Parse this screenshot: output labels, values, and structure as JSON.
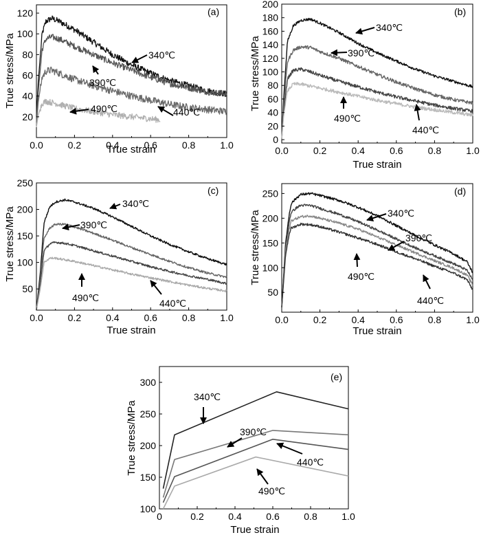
{
  "chart_data": [
    {
      "type": "line",
      "panel": "(a)",
      "xlabel": "True strain",
      "ylabel": "True stress/MPa",
      "xlim": [
        0,
        1.0
      ],
      "ylim": [
        0,
        128
      ],
      "xticks": [
        "0.0",
        "0.2",
        "0.4",
        "0.6",
        "0.8",
        "1.0"
      ],
      "yticks": [
        "20",
        "40",
        "60",
        "80",
        "100",
        "120"
      ],
      "series": [
        {
          "name": "340℃",
          "color": "#111111",
          "noise": 3.0,
          "x": [
            0,
            0.01,
            0.03,
            0.05,
            0.08,
            0.12,
            0.2,
            0.3,
            0.4,
            0.5,
            0.6,
            0.7,
            0.8,
            0.9,
            1.0
          ],
          "y": [
            20,
            55,
            100,
            112,
            115,
            112,
            104,
            92,
            80,
            70,
            62,
            55,
            50,
            45,
            42
          ]
        },
        {
          "name": "390℃",
          "color": "#555555",
          "noise": 3.0,
          "x": [
            0,
            0.01,
            0.03,
            0.05,
            0.08,
            0.12,
            0.2,
            0.3,
            0.4,
            0.5,
            0.6,
            0.7,
            0.8,
            0.9,
            1.0
          ],
          "y": [
            15,
            45,
            85,
            95,
            97,
            95,
            88,
            80,
            72,
            65,
            58,
            52,
            48,
            44,
            42
          ]
        },
        {
          "name": "440℃",
          "color": "#6a6a6a",
          "noise": 3.5,
          "x": [
            0,
            0.01,
            0.03,
            0.05,
            0.08,
            0.12,
            0.2,
            0.3,
            0.4,
            0.5,
            0.6,
            0.7,
            0.8,
            0.9,
            1.0
          ],
          "y": [
            12,
            35,
            58,
            64,
            65,
            62,
            56,
            50,
            45,
            40,
            36,
            32,
            29,
            27,
            25
          ]
        },
        {
          "name": "490℃",
          "color": "#b0b0b0",
          "noise": 3.0,
          "x": [
            0,
            0.01,
            0.03,
            0.05,
            0.1,
            0.2,
            0.3,
            0.4,
            0.5,
            0.6,
            0.65
          ],
          "y": [
            10,
            22,
            33,
            35,
            33,
            28,
            25,
            22,
            20,
            18,
            17
          ]
        }
      ],
      "annotations": [
        "340℃",
        "390℃",
        "440℃",
        "490℃"
      ]
    },
    {
      "type": "line",
      "panel": "(b)",
      "xlabel": "True strain",
      "ylabel": "True stress/MPa",
      "xlim": [
        0,
        1.0
      ],
      "ylim": [
        -5,
        200
      ],
      "xticks": [
        "0.0",
        "0.2",
        "0.4",
        "0.6",
        "0.8",
        "1.0"
      ],
      "yticks": [
        "0",
        "20",
        "40",
        "60",
        "80",
        "100",
        "120",
        "140",
        "160",
        "180",
        "200"
      ],
      "series": [
        {
          "name": "340℃",
          "color": "#111111",
          "noise": 2.0,
          "x": [
            0,
            0.01,
            0.03,
            0.06,
            0.1,
            0.15,
            0.2,
            0.3,
            0.4,
            0.5,
            0.6,
            0.7,
            0.8,
            0.9,
            1.0
          ],
          "y": [
            0,
            60,
            145,
            168,
            176,
            178,
            172,
            158,
            142,
            128,
            116,
            104,
            94,
            86,
            78
          ]
        },
        {
          "name": "390℃",
          "color": "#666666",
          "noise": 2.5,
          "x": [
            0,
            0.01,
            0.03,
            0.06,
            0.1,
            0.15,
            0.2,
            0.3,
            0.4,
            0.5,
            0.6,
            0.7,
            0.8,
            0.9,
            1.0
          ],
          "y": [
            0,
            50,
            115,
            132,
            137,
            136,
            130,
            120,
            108,
            96,
            85,
            75,
            66,
            59,
            54
          ]
        },
        {
          "name": "440℃",
          "color": "#444444",
          "noise": 2.5,
          "x": [
            0,
            0.01,
            0.03,
            0.06,
            0.1,
            0.15,
            0.2,
            0.3,
            0.4,
            0.5,
            0.6,
            0.7,
            0.8,
            0.9,
            1.0
          ],
          "y": [
            0,
            40,
            90,
            102,
            104,
            100,
            95,
            86,
            78,
            70,
            63,
            57,
            51,
            46,
            42
          ]
        },
        {
          "name": "490℃",
          "color": "#bbbbbb",
          "noise": 2.5,
          "x": [
            0,
            0.01,
            0.03,
            0.06,
            0.1,
            0.2,
            0.3,
            0.4,
            0.5,
            0.6,
            0.7,
            0.8,
            0.9,
            1.0
          ],
          "y": [
            0,
            35,
            72,
            82,
            82,
            76,
            70,
            64,
            58,
            53,
            48,
            44,
            40,
            36
          ]
        }
      ],
      "annotations": [
        "340℃",
        "390℃",
        "440℃",
        "490℃"
      ]
    },
    {
      "type": "line",
      "panel": "(c)",
      "xlabel": "True strain",
      "ylabel": "True stress/MPa",
      "xlim": [
        0,
        1.0
      ],
      "ylim": [
        10,
        250
      ],
      "xticks": [
        "0.0",
        "0.2",
        "0.4",
        "0.6",
        "0.8",
        "1.0"
      ],
      "yticks": [
        "50",
        "100",
        "150",
        "200",
        "250"
      ],
      "series": [
        {
          "name": "340℃",
          "color": "#111111",
          "noise": 2.0,
          "x": [
            0,
            0.02,
            0.04,
            0.07,
            0.1,
            0.15,
            0.2,
            0.3,
            0.4,
            0.5,
            0.6,
            0.7,
            0.8,
            0.9,
            1.0
          ],
          "y": [
            10,
            80,
            175,
            205,
            214,
            218,
            214,
            202,
            186,
            168,
            150,
            134,
            120,
            107,
            96
          ]
        },
        {
          "name": "390℃",
          "color": "#666666",
          "noise": 2.0,
          "x": [
            0,
            0.02,
            0.04,
            0.07,
            0.1,
            0.15,
            0.2,
            0.3,
            0.4,
            0.5,
            0.6,
            0.7,
            0.8,
            0.9,
            1.0
          ],
          "y": [
            10,
            70,
            145,
            165,
            172,
            172,
            167,
            155,
            142,
            128,
            115,
            102,
            90,
            80,
            72
          ]
        },
        {
          "name": "440℃",
          "color": "#444444",
          "noise": 2.0,
          "x": [
            0,
            0.02,
            0.04,
            0.07,
            0.1,
            0.15,
            0.2,
            0.3,
            0.4,
            0.5,
            0.6,
            0.7,
            0.8,
            0.9,
            1.0
          ],
          "y": [
            10,
            60,
            122,
            135,
            138,
            136,
            132,
            122,
            112,
            102,
            92,
            83,
            75,
            68,
            60
          ]
        },
        {
          "name": "490℃",
          "color": "#aaaaaa",
          "noise": 2.0,
          "x": [
            0,
            0.02,
            0.04,
            0.07,
            0.1,
            0.2,
            0.3,
            0.4,
            0.5,
            0.6,
            0.7,
            0.8,
            0.9,
            1.0
          ],
          "y": [
            10,
            50,
            100,
            108,
            108,
            102,
            94,
            86,
            78,
            71,
            64,
            57,
            51,
            46
          ]
        }
      ],
      "annotations": [
        "340℃",
        "390℃",
        "440℃",
        "490℃"
      ]
    },
    {
      "type": "line",
      "panel": "(d)",
      "xlabel": "True strain",
      "ylabel": "True stress/MPa",
      "xlim": [
        0,
        1.0
      ],
      "ylim": [
        10,
        270
      ],
      "xticks": [
        "0.0",
        "0.2",
        "0.4",
        "0.6",
        "0.8",
        "1.0"
      ],
      "yticks": [
        "50",
        "100",
        "150",
        "200",
        "250"
      ],
      "series": [
        {
          "name": "340℃",
          "color": "#111111",
          "noise": 2.5,
          "x": [
            0,
            0.02,
            0.04,
            0.05,
            0.08,
            0.1,
            0.15,
            0.2,
            0.3,
            0.4,
            0.5,
            0.6,
            0.7,
            0.8,
            0.9,
            0.97,
            1.0
          ],
          "y": [
            20,
            150,
            210,
            230,
            242,
            248,
            250,
            246,
            236,
            222,
            205,
            185,
            165,
            146,
            128,
            112,
            90
          ]
        },
        {
          "name": "390℃",
          "color": "#444444",
          "noise": 2.5,
          "x": [
            0,
            0.02,
            0.04,
            0.05,
            0.08,
            0.1,
            0.15,
            0.2,
            0.3,
            0.4,
            0.5,
            0.6,
            0.7,
            0.8,
            0.9,
            0.97,
            1.0
          ],
          "y": [
            20,
            140,
            195,
            212,
            222,
            226,
            226,
            220,
            208,
            193,
            176,
            158,
            140,
            124,
            108,
            95,
            75
          ]
        },
        {
          "name": "440℃",
          "color": "#888888",
          "noise": 2.5,
          "x": [
            0,
            0.02,
            0.04,
            0.05,
            0.08,
            0.1,
            0.15,
            0.2,
            0.3,
            0.4,
            0.5,
            0.6,
            0.7,
            0.8,
            0.9,
            0.97,
            1.0
          ],
          "y": [
            20,
            135,
            180,
            195,
            200,
            203,
            205,
            200,
            190,
            178,
            162,
            146,
            130,
            114,
            99,
            85,
            65
          ]
        },
        {
          "name": "490℃",
          "color": "#333333",
          "noise": 2.5,
          "x": [
            0,
            0.02,
            0.04,
            0.05,
            0.08,
            0.1,
            0.15,
            0.2,
            0.3,
            0.4,
            0.5,
            0.6,
            0.7,
            0.8,
            0.9,
            0.97,
            1.0
          ],
          "y": [
            20,
            125,
            170,
            180,
            185,
            188,
            187,
            183,
            172,
            160,
            147,
            132,
            118,
            103,
            89,
            76,
            55
          ]
        }
      ],
      "annotations": [
        "340℃",
        "390℃",
        "440℃",
        "490℃"
      ]
    },
    {
      "type": "line",
      "panel": "(e)",
      "xlabel": "True strain",
      "ylabel": "True stress/MPa",
      "xlim": [
        0,
        1.0
      ],
      "ylim": [
        100,
        325
      ],
      "xticks": [
        "0",
        "0.2",
        "0.4",
        "0.6",
        "0.8",
        "1.0"
      ],
      "yticks": [
        "100",
        "150",
        "200",
        "250",
        "300"
      ],
      "series": [
        {
          "name": "340℃",
          "color": "#222222",
          "noise": 0,
          "x": [
            0.02,
            0.08,
            0.62,
            1.0
          ],
          "y": [
            132,
            217,
            285,
            258
          ]
        },
        {
          "name": "390℃",
          "color": "#777777",
          "noise": 0,
          "x": [
            0.02,
            0.08,
            0.6,
            1.0
          ],
          "y": [
            118,
            178,
            224,
            217
          ]
        },
        {
          "name": "440℃",
          "color": "#555555",
          "noise": 0,
          "x": [
            0.02,
            0.08,
            0.6,
            1.0
          ],
          "y": [
            110,
            151,
            210,
            194
          ]
        },
        {
          "name": "490℃",
          "color": "#aaaaaa",
          "noise": 0,
          "x": [
            0.02,
            0.08,
            0.51,
            1.0
          ],
          "y": [
            100,
            136,
            182,
            152
          ]
        }
      ],
      "annotations": [
        "340℃",
        "390℃",
        "440℃",
        "490℃"
      ]
    }
  ]
}
